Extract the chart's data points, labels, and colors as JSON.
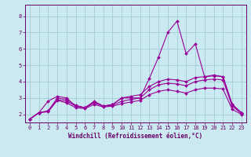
{
  "title": "",
  "xlabel": "Windchill (Refroidissement éolien,°C)",
  "ylabel": "",
  "bg_color": "#cbe9f0",
  "line_color": "#990099",
  "grid_color": "#a0ccd8",
  "xlim": [
    -0.5,
    23.5
  ],
  "ylim": [
    1.5,
    8.7
  ],
  "xticks": [
    0,
    1,
    2,
    3,
    4,
    5,
    6,
    7,
    8,
    9,
    10,
    11,
    12,
    13,
    14,
    15,
    16,
    17,
    18,
    19,
    20,
    21,
    22,
    23
  ],
  "yticks": [
    2,
    3,
    4,
    5,
    6,
    7,
    8
  ],
  "series1_x": [
    0,
    1,
    2,
    3,
    4,
    5,
    6,
    7,
    8,
    9,
    10,
    11,
    12,
    13,
    14,
    15,
    16,
    17,
    18,
    19,
    20,
    21,
    22,
    23
  ],
  "series1_y": [
    1.7,
    2.1,
    2.8,
    3.1,
    3.0,
    2.5,
    2.4,
    2.8,
    2.5,
    2.6,
    3.0,
    3.0,
    3.0,
    4.2,
    5.5,
    7.0,
    7.7,
    5.7,
    6.3,
    4.3,
    4.4,
    4.3,
    2.6,
    2.1
  ],
  "series2_x": [
    0,
    1,
    2,
    3,
    4,
    5,
    6,
    7,
    8,
    9,
    10,
    11,
    12,
    13,
    14,
    15,
    16,
    17,
    18,
    19,
    20,
    21,
    22,
    23
  ],
  "series2_y": [
    1.7,
    2.1,
    2.2,
    3.0,
    2.9,
    2.55,
    2.4,
    2.75,
    2.5,
    2.6,
    3.0,
    3.1,
    3.2,
    3.7,
    4.0,
    4.15,
    4.1,
    4.0,
    4.25,
    4.3,
    4.35,
    4.3,
    2.6,
    2.1
  ],
  "series3_x": [
    0,
    1,
    2,
    3,
    4,
    5,
    6,
    7,
    8,
    9,
    10,
    11,
    12,
    13,
    14,
    15,
    16,
    17,
    18,
    19,
    20,
    21,
    22,
    23
  ],
  "series3_y": [
    1.7,
    2.1,
    2.2,
    2.9,
    2.8,
    2.5,
    2.4,
    2.7,
    2.5,
    2.55,
    2.8,
    2.9,
    3.0,
    3.5,
    3.8,
    3.9,
    3.85,
    3.75,
    4.0,
    4.1,
    4.15,
    4.1,
    2.5,
    2.05
  ],
  "series4_x": [
    0,
    1,
    2,
    3,
    4,
    5,
    6,
    7,
    8,
    9,
    10,
    11,
    12,
    13,
    14,
    15,
    16,
    17,
    18,
    19,
    20,
    21,
    22,
    23
  ],
  "series4_y": [
    1.7,
    2.1,
    2.15,
    2.85,
    2.7,
    2.4,
    2.35,
    2.6,
    2.45,
    2.5,
    2.65,
    2.75,
    2.85,
    3.2,
    3.4,
    3.5,
    3.4,
    3.3,
    3.5,
    3.6,
    3.6,
    3.55,
    2.3,
    2.0
  ],
  "tick_fontsize": 5,
  "xlabel_fontsize": 5.5,
  "marker_size": 2.0,
  "line_width": 0.8
}
